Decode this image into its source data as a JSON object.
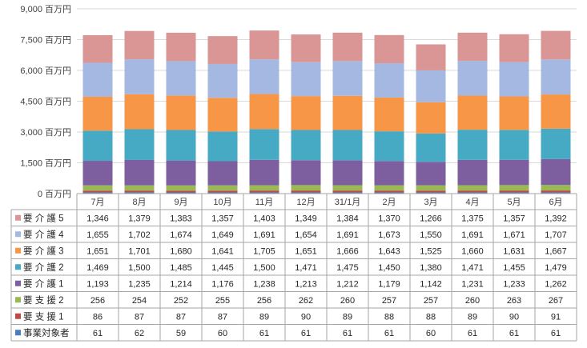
{
  "chart_data": {
    "type": "bar",
    "stacked": true,
    "grid": true,
    "legend": "data-table-rows",
    "ylim": [
      0,
      9000
    ],
    "y_ticks": [
      0,
      1500,
      3000,
      4500,
      6000,
      7500,
      9000
    ],
    "y_tick_labels": [
      "0 百万円",
      "1,500 百万円",
      "3,000 百万円",
      "4,500 百万円",
      "6,000 百万円",
      "7,500 百万円",
      "9,000 百万円"
    ],
    "categories": [
      "7月",
      "8月",
      "9月",
      "10月",
      "11月",
      "12月",
      "31/1月",
      "2月",
      "3月",
      "4月",
      "5月",
      "6月"
    ],
    "series": [
      {
        "name": "事業対象者",
        "color": "#4a7ebb",
        "values": [
          61,
          62,
          59,
          60,
          61,
          61,
          61,
          61,
          60,
          61,
          61,
          61
        ]
      },
      {
        "name": "要 支 援 1",
        "color": "#be4b48",
        "values": [
          86,
          87,
          87,
          87,
          89,
          90,
          89,
          88,
          88,
          89,
          90,
          91
        ]
      },
      {
        "name": "要 支 援 2",
        "color": "#98b954",
        "values": [
          256,
          254,
          252,
          255,
          256,
          262,
          260,
          257,
          257,
          260,
          263,
          267
        ]
      },
      {
        "name": "要 介 護 1",
        "color": "#7d5fa0",
        "values": [
          1193,
          1235,
          1214,
          1176,
          1238,
          1213,
          1212,
          1179,
          1142,
          1231,
          1233,
          1262
        ]
      },
      {
        "name": "要 介 護 2",
        "color": "#46aac5",
        "values": [
          1469,
          1500,
          1485,
          1445,
          1500,
          1471,
          1475,
          1450,
          1380,
          1471,
          1455,
          1479
        ]
      },
      {
        "name": "要 介 護 3",
        "color": "#f79646",
        "values": [
          1651,
          1701,
          1680,
          1641,
          1705,
          1651,
          1666,
          1643,
          1525,
          1660,
          1631,
          1667
        ]
      },
      {
        "name": "要 介 護 4",
        "color": "#a5b8e1",
        "values": [
          1655,
          1702,
          1674,
          1649,
          1691,
          1654,
          1691,
          1673,
          1550,
          1691,
          1671,
          1707
        ]
      },
      {
        "name": "要 介 護 5",
        "color": "#da9694",
        "values": [
          1346,
          1379,
          1383,
          1357,
          1403,
          1349,
          1384,
          1370,
          1266,
          1375,
          1357,
          1392
        ]
      }
    ],
    "table_rows": [
      {
        "name": "要 介 護 5",
        "values": [
          "1,346",
          "1,379",
          "1,383",
          "1,357",
          "1,403",
          "1,349",
          "1,384",
          "1,370",
          "1,266",
          "1,375",
          "1,357",
          "1,392"
        ]
      },
      {
        "name": "要 介 護 4",
        "values": [
          "1,655",
          "1,702",
          "1,674",
          "1,649",
          "1,691",
          "1,654",
          "1,691",
          "1,673",
          "1,550",
          "1,691",
          "1,671",
          "1,707"
        ]
      },
      {
        "name": "要 介 護 3",
        "values": [
          "1,651",
          "1,701",
          "1,680",
          "1,641",
          "1,705",
          "1,651",
          "1,666",
          "1,643",
          "1,525",
          "1,660",
          "1,631",
          "1,667"
        ]
      },
      {
        "name": "要 介 護 2",
        "values": [
          "1,469",
          "1,500",
          "1,485",
          "1,445",
          "1,500",
          "1,471",
          "1,475",
          "1,450",
          "1,380",
          "1,471",
          "1,455",
          "1,479"
        ]
      },
      {
        "name": "要 介 護 1",
        "values": [
          "1,193",
          "1,235",
          "1,214",
          "1,176",
          "1,238",
          "1,213",
          "1,212",
          "1,179",
          "1,142",
          "1,231",
          "1,233",
          "1,262"
        ]
      },
      {
        "name": "要 支 援 2",
        "values": [
          "256",
          "254",
          "252",
          "255",
          "256",
          "262",
          "260",
          "257",
          "257",
          "260",
          "263",
          "267"
        ]
      },
      {
        "name": "要 支 援 1",
        "values": [
          "86",
          "87",
          "87",
          "87",
          "89",
          "90",
          "89",
          "88",
          "88",
          "89",
          "90",
          "91"
        ]
      },
      {
        "name": "事業対象者",
        "values": [
          "61",
          "62",
          "59",
          "60",
          "61",
          "61",
          "61",
          "61",
          "60",
          "61",
          "61",
          "61"
        ]
      }
    ]
  }
}
